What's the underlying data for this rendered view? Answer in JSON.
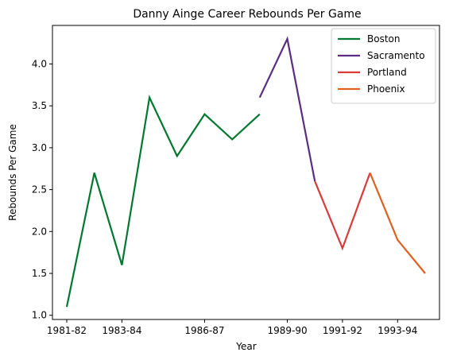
{
  "chart_data": {
    "type": "line",
    "title": "Danny Ainge Career Rebounds Per Game",
    "xlabel": "Year",
    "ylabel": "Rebounds Per Game",
    "x_tick_labels": [
      "1981-82",
      "1983-84",
      "1986-87",
      "1989-90",
      "1991-92",
      "1993-94"
    ],
    "y_ticks": [
      1.0,
      1.5,
      2.0,
      2.5,
      3.0,
      3.5,
      4.0
    ],
    "y_tick_labels": [
      "1.0",
      "1.5",
      "2.0",
      "2.5",
      "3.0",
      "3.5",
      "4.0"
    ],
    "ylim": [
      0.95,
      4.46
    ],
    "legend_position": "top-right",
    "grid": false,
    "series": [
      {
        "name": "Boston",
        "color": "#00782f",
        "points": [
          {
            "x": "1981-82",
            "y": 1.1
          },
          {
            "x": "1982-83",
            "y": 2.7
          },
          {
            "x": "1983-84",
            "y": 1.6
          },
          {
            "x": "1984-85",
            "y": 3.6
          },
          {
            "x": "1985-86",
            "y": 2.9
          },
          {
            "x": "1986-87",
            "y": 3.4
          },
          {
            "x": "1987-88",
            "y": 3.1
          },
          {
            "x": "1988-89",
            "y": 3.4
          }
        ]
      },
      {
        "name": "Sacramento",
        "color": "#5a2d82",
        "points": [
          {
            "x": "1988-89",
            "y": 3.6
          },
          {
            "x": "1989-90",
            "y": 4.3
          },
          {
            "x": "1990-91",
            "y": 2.6
          }
        ]
      },
      {
        "name": "Portland",
        "color": "#d93b3b",
        "points": [
          {
            "x": "1990-91",
            "y": 2.6
          },
          {
            "x": "1991-92",
            "y": 1.8
          },
          {
            "x": "1992-93",
            "y": 2.7
          }
        ]
      },
      {
        "name": "Phoenix",
        "color": "#e0601f",
        "points": [
          {
            "x": "1992-93",
            "y": 2.7
          },
          {
            "x": "1993-94",
            "y": 1.9
          },
          {
            "x": "1994-95",
            "y": 1.5
          }
        ]
      }
    ]
  }
}
